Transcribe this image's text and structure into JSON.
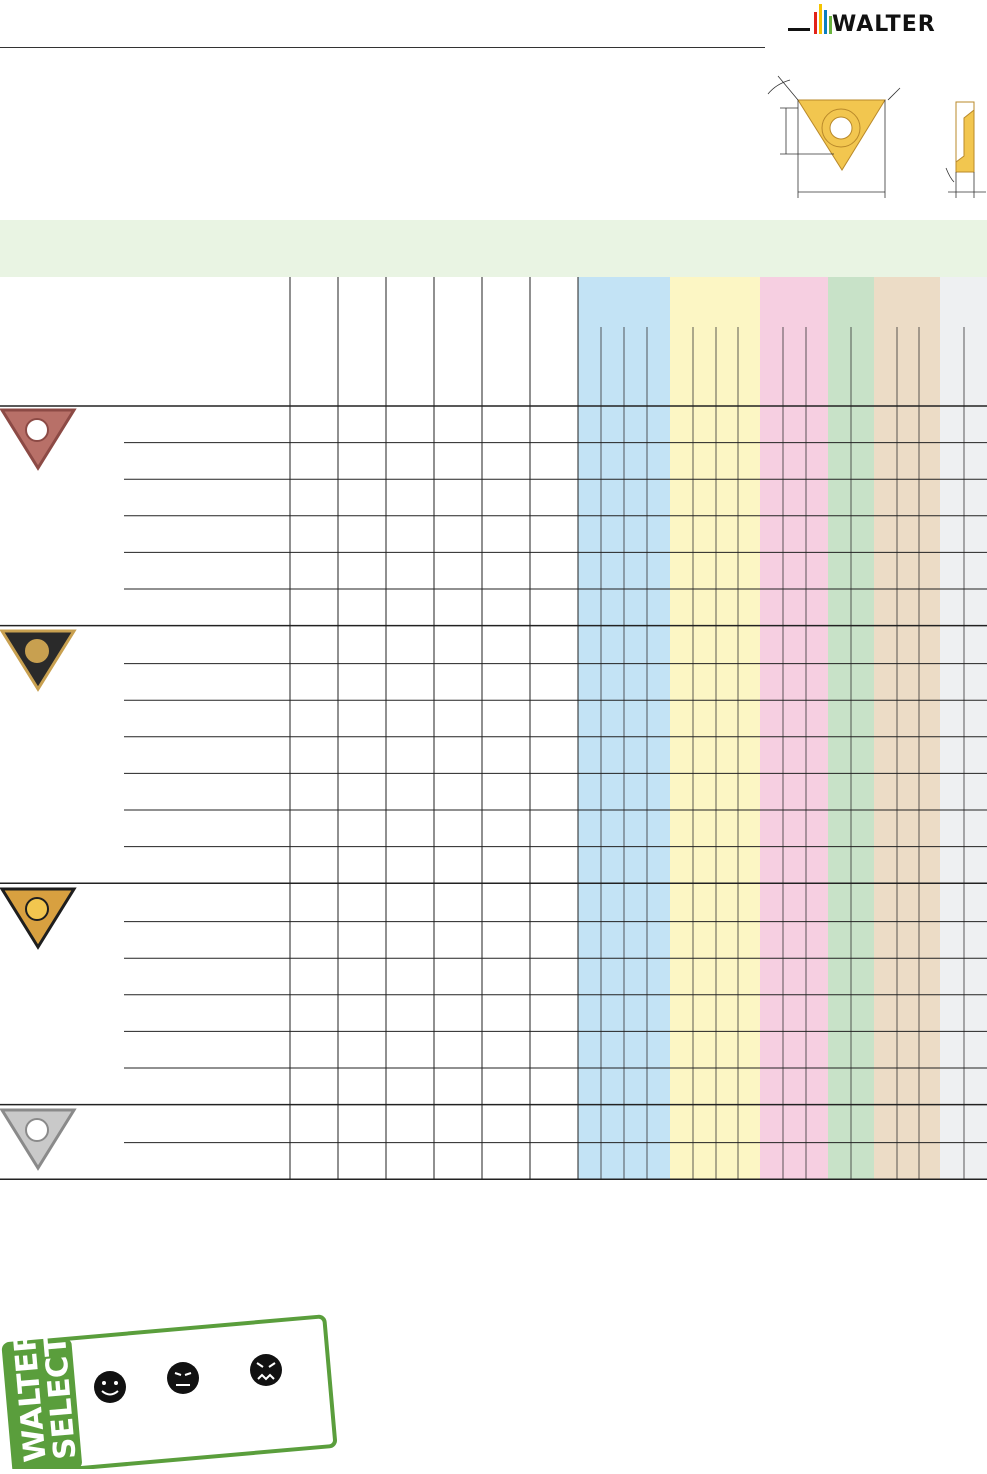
{
  "brand": {
    "name": "WALTER"
  },
  "colors": {
    "band_P": "#c3e3f5",
    "band_M": "#fcf6c4",
    "band_K": "#f6cfe1",
    "band_N": "#c8e2c8",
    "band_S": "#ecdcc6",
    "band_H": "#eef0f2",
    "header_band": "#e9f4e3",
    "insert_yellow": "#f2c64f",
    "badge_green": "#5a9e3c"
  },
  "insert_groups": [
    {
      "name": "pink-insert",
      "rows": 6,
      "icon": "triangular-insert-pink-icon"
    },
    {
      "name": "black-gold-insert",
      "rows": 7,
      "icon": "triangular-insert-black-gold-icon"
    },
    {
      "name": "gold-insert",
      "rows": 6,
      "icon": "triangular-insert-gold-icon"
    },
    {
      "name": "silver-insert",
      "rows": 2,
      "icon": "triangular-insert-silver-icon"
    }
  ],
  "walter_select": {
    "line1": "WALTER",
    "line2": "SELECT",
    "icons": [
      "smiley-happy-icon",
      "smiley-neutral-icon",
      "smiley-angry-icon"
    ]
  }
}
